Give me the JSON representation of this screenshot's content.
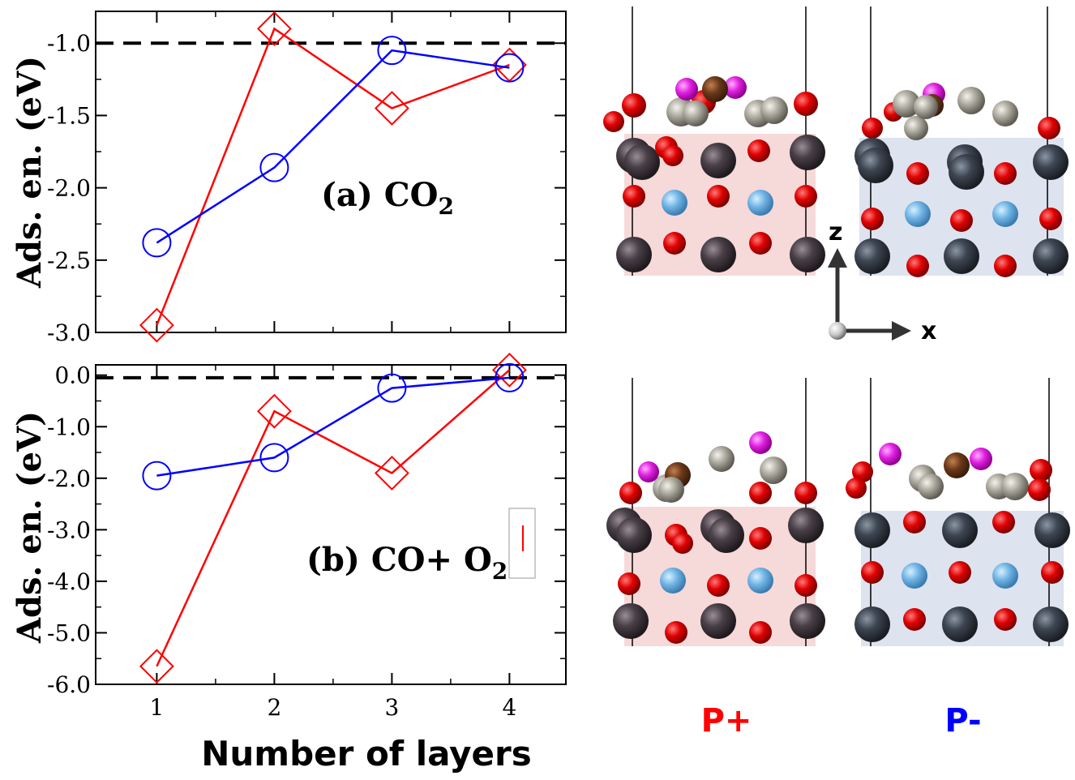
{
  "chart_data": [
    {
      "type": "line",
      "panel_label": "(a)",
      "molecule": "CO",
      "molecule_subscript": "2",
      "ylabel": "Ads. en. (eV)",
      "x": [
        1,
        2,
        3,
        4
      ],
      "xticks": [
        "1",
        "2",
        "3",
        "4"
      ],
      "ylim": [
        -3.0,
        -0.78
      ],
      "yticks": [
        "-1.0",
        "-1.5",
        "-2.0",
        "-2.5",
        "-3.0"
      ],
      "ytick_values": [
        -1.0,
        -1.5,
        -2.0,
        -2.5,
        -3.0
      ],
      "reference_line": -1.0,
      "series": [
        {
          "color": "#ff0000",
          "marker": "diamond",
          "values": [
            -2.95,
            -0.9,
            -1.45,
            -1.15
          ]
        },
        {
          "color": "#0000ff",
          "marker": "circle",
          "values": [
            -2.38,
            -1.86,
            -1.05,
            -1.17
          ]
        }
      ]
    },
    {
      "type": "line",
      "panel_label": "(b)",
      "molecule": "CO+ O",
      "molecule_subscript": "2",
      "ylabel": "Ads. en. (eV)",
      "xlabel": "Number of layers",
      "x": [
        1,
        2,
        3,
        4
      ],
      "xticks": [
        "1",
        "2",
        "3",
        "4"
      ],
      "ylim": [
        -6.0,
        0.2
      ],
      "yticks": [
        "0.0",
        "-1.0",
        "-2.0",
        "-3.0",
        "-4.0",
        "-5.0",
        "-6.0"
      ],
      "ytick_values": [
        0.0,
        -1.0,
        -2.0,
        -3.0,
        -4.0,
        -5.0,
        -6.0
      ],
      "reference_line": -0.05,
      "series": [
        {
          "color": "#ff0000",
          "marker": "diamond",
          "values": [
            -5.65,
            -0.7,
            -1.9,
            0.1
          ]
        },
        {
          "color": "#0000ff",
          "marker": "circle",
          "values": [
            -1.95,
            -1.6,
            -0.25,
            -0.05
          ]
        }
      ]
    }
  ],
  "structures": {
    "axis_z": "z",
    "axis_x": "x",
    "label_plus": "P+",
    "label_minus": "P-",
    "color_plus": "#ff0000",
    "color_minus": "#0000ff"
  }
}
